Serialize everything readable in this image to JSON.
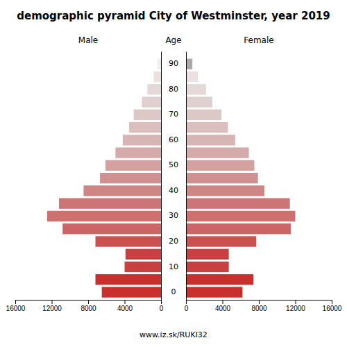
{
  "chart_data": {
    "type": "pyramid",
    "title": "demographic pyramid City of Westminster, year 2019",
    "orientation": "horizontal",
    "ylabel": "Age",
    "annotations": [
      "www.iz.sk/RUKI32"
    ],
    "y": [
      0,
      5,
      10,
      15,
      20,
      25,
      30,
      35,
      40,
      45,
      50,
      55,
      60,
      65,
      70,
      75,
      80,
      85,
      90
    ],
    "ylim": [
      -3,
      95
    ],
    "yticks": [
      0,
      10,
      20,
      30,
      40,
      50,
      60,
      70,
      80,
      90
    ],
    "xlim": [
      0,
      16000
    ],
    "xticks": [
      0,
      4000,
      8000,
      12000,
      16000
    ],
    "grid": false,
    "series": [
      {
        "name": "Male",
        "values": [
          6500,
          7200,
          4000,
          3900,
          7200,
          10800,
          12500,
          11200,
          8500,
          6700,
          6100,
          5000,
          4200,
          3500,
          3000,
          2100,
          1500,
          800,
          400
        ],
        "colors": [
          "#c8302e",
          "#c8302e",
          "#c94040",
          "#c94040",
          "#cb5050",
          "#cc6565",
          "#cd7070",
          "#cd7575",
          "#d08585",
          "#d09090",
          "#d4a0a0",
          "#d5aaaa",
          "#d8b5b5",
          "#dbbfbf",
          "#ddc8c8",
          "#e0d0d0",
          "#e5d8d8",
          "#ece0e0",
          "#f3eeee"
        ]
      },
      {
        "name": "Female",
        "values": [
          6200,
          7400,
          4700,
          4700,
          7700,
          11500,
          12000,
          11400,
          8600,
          7900,
          7500,
          6900,
          5400,
          4600,
          3900,
          2900,
          2200,
          1300,
          700
        ],
        "colors": [
          "#c8302e",
          "#c8302e",
          "#c94040",
          "#c94040",
          "#cb5050",
          "#cc6565",
          "#cd7070",
          "#cd7575",
          "#d08585",
          "#d09090",
          "#d4a0a0",
          "#d5aaaa",
          "#d8b5b5",
          "#dbbfbf",
          "#ddc8c8",
          "#e0d0d0",
          "#e5d8d8",
          "#ece0e0",
          "#aaaaaa"
        ]
      }
    ]
  }
}
